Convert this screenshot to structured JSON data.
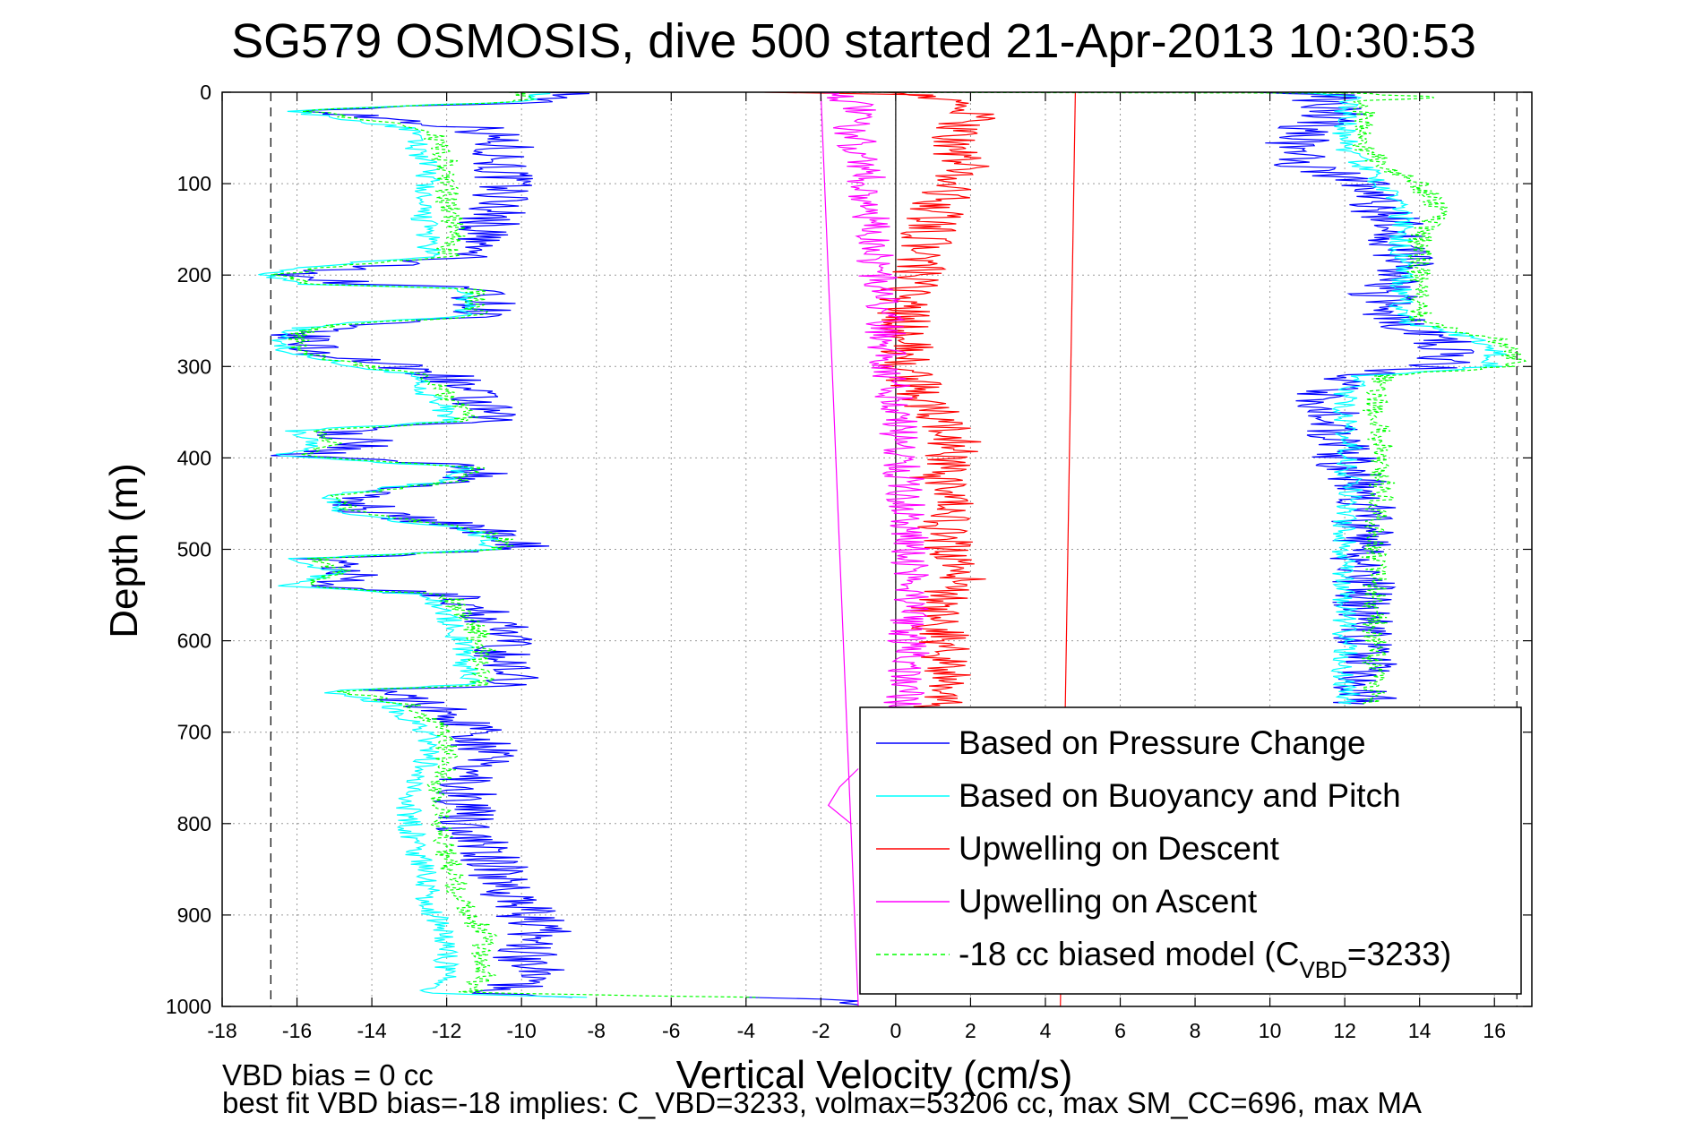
{
  "chart_data": {
    "type": "line",
    "title": "SG579 OSMOSIS, dive 500 started 21-Apr-2013 10:30:53",
    "xlabel": "Vertical Velocity (cm/s)",
    "ylabel": "Depth (m)",
    "xlim": [
      -18,
      17
    ],
    "ylim": [
      0,
      1000
    ],
    "y_reversed": true,
    "grid": true,
    "x_ticks": [
      "-18",
      "-16",
      "-14",
      "-12",
      "-10",
      "-8",
      "-6",
      "-4",
      "-2",
      "0",
      "2",
      "4",
      "6",
      "8",
      "10",
      "12",
      "14",
      "16"
    ],
    "y_ticks": [
      "0",
      "100",
      "200",
      "300",
      "400",
      "500",
      "600",
      "700",
      "800",
      "900",
      "1000"
    ],
    "legend_position": "bottom-right",
    "legend": [
      {
        "label": "Based on Pressure Change",
        "sub": "",
        "tail": "",
        "color": "#0000ff",
        "dash": "solid"
      },
      {
        "label": "Based on Buoyancy and Pitch",
        "sub": "",
        "tail": "",
        "color": "#00ffff",
        "dash": "solid"
      },
      {
        "label": "Upwelling on Descent",
        "sub": "",
        "tail": "",
        "color": "#ff0000",
        "dash": "solid"
      },
      {
        "label": "Upwelling on Ascent",
        "sub": "",
        "tail": "",
        "color": "#ff00ff",
        "dash": "solid"
      },
      {
        "label": "-18 cc biased model (C",
        "sub": "VBD",
        "tail": "=3233)",
        "color": "#00ff00",
        "dash": "dashed"
      }
    ],
    "annotations": {
      "line1": "VBD bias = 0 cc",
      "line2": "best fit VBD bias=-18 implies: C_VBD=3233, volmax=53206 cc, max SM_CC=696, max MA"
    },
    "reference_lines": [
      {
        "x": -16.7,
        "style": "dashed",
        "color": "#000000"
      },
      {
        "x": 16.6,
        "style": "dashed",
        "color": "#000000"
      },
      {
        "x": 0,
        "style": "solid",
        "color": "#000000"
      }
    ],
    "series": [
      {
        "name": "Based on Pressure Change",
        "color": "#0000ff",
        "segments": [
          {
            "depth": [
              0,
              10,
              20,
              40,
              60,
              80,
              100,
              120,
              150,
              180,
              190,
              200,
              205,
              210,
              215,
              230,
              245,
              255,
              265,
              285,
              295,
              310,
              330,
              350,
              360,
              370,
              385,
              398,
              410,
              425,
              440,
              460,
              478,
              490,
              500,
              510,
              525,
              540,
              550,
              570,
              590,
              610,
              630,
              648,
              655,
              670,
              700,
              730,
              760,
              800,
              830,
              860,
              890,
              920,
              950,
              965,
              980,
              985,
              990
            ],
            "x": [
              -8.5,
              -9.5,
              -15.5,
              -11,
              -10.5,
              -10.5,
              -10.5,
              -10.5,
              -11,
              -11.5,
              -14,
              -16,
              -15.5,
              -14,
              -11,
              -11,
              -11,
              -15,
              -16,
              -15.5,
              -14,
              -12,
              -11.5,
              -11,
              -11,
              -15,
              -14,
              -16,
              -11,
              -11.5,
              -14.5,
              -14,
              -11,
              -10,
              -10,
              -15.5,
              -14.5,
              -15.5,
              -12,
              -11,
              -10.5,
              -10.5,
              -10.5,
              -10,
              -14,
              -12.5,
              -11,
              -11,
              -11.5,
              -11.5,
              -11,
              -10.5,
              -10,
              -9.5,
              -10,
              -9,
              -10.5,
              -11,
              -8
            ]
          },
          {
            "depth": [
              990,
              992,
              994,
              996,
              998
            ],
            "x": [
              -4,
              -2,
              -1,
              -1.5,
              -1
            ]
          },
          {
            "depth": [
              0,
              5,
              10,
              20,
              40,
              60,
              80,
              100,
              130,
              160,
              190,
              220,
              250,
              270,
              285,
              300,
              310,
              330,
              360,
              390,
              410,
              440,
              470,
              500,
              530,
              560,
              590,
              620,
              650,
              670
            ],
            "x": [
              10.5,
              12,
              11,
              12,
              11,
              10.5,
              11,
              12.5,
              13,
              13.5,
              13.5,
              13,
              13.5,
              14.5,
              15,
              14.5,
              12,
              11.5,
              11.5,
              12,
              12,
              12.5,
              12.5,
              12.5,
              12.5,
              12.5,
              12.5,
              12.5,
              12.5,
              12.5
            ]
          }
        ]
      },
      {
        "name": "Based on Buoyancy and Pitch",
        "color": "#00ffff",
        "segments": [
          {
            "depth": [
              0,
              10,
              20,
              40,
              60,
              80,
              100,
              120,
              150,
              180,
              190,
              200,
              205,
              210,
              215,
              230,
              245,
              255,
              265,
              285,
              295,
              310,
              330,
              350,
              360,
              370,
              385,
              398,
              410,
              425,
              440,
              460,
              478,
              490,
              500,
              510,
              525,
              540,
              550,
              570,
              590,
              610,
              630,
              648,
              655,
              670,
              700,
              730,
              760,
              800,
              830,
              860,
              890,
              920,
              950,
              965,
              980,
              985,
              990
            ],
            "x": [
              -9.5,
              -10,
              -16.2,
              -13,
              -12.8,
              -12.5,
              -12.5,
              -12.8,
              -12.5,
              -12.5,
              -15.5,
              -17,
              -16.5,
              -16,
              -11.5,
              -11.5,
              -11.5,
              -15.5,
              -16.5,
              -16.2,
              -15,
              -12.8,
              -12.5,
              -12,
              -12,
              -16,
              -15.5,
              -16.5,
              -11.5,
              -12,
              -15,
              -15,
              -11.5,
              -10.8,
              -10.8,
              -16,
              -15,
              -16.2,
              -12.5,
              -12,
              -11.8,
              -11.5,
              -11.5,
              -11.2,
              -15.2,
              -13.5,
              -12.5,
              -12.5,
              -13,
              -13,
              -12.8,
              -12.5,
              -12.5,
              -12,
              -12,
              -12,
              -12.2,
              -12.5,
              -8.5
            ]
          },
          {
            "depth": [
              0,
              5,
              10,
              20,
              40,
              60,
              80,
              100,
              130,
              160,
              190,
              220,
              250,
              270,
              285,
              300,
              310,
              330,
              360,
              390,
              410,
              440,
              470,
              500,
              530,
              560,
              590,
              620,
              650,
              670
            ],
            "x": [
              11,
              12.5,
              12,
              12,
              12,
              12,
              12.5,
              13,
              13.5,
              13.5,
              13.5,
              13.5,
              13.5,
              15.5,
              16,
              16,
              12.5,
              12,
              12,
              12.2,
              12,
              12.2,
              12,
              12,
              12,
              12,
              12,
              12,
              12,
              12.2
            ]
          }
        ]
      },
      {
        "name": "Upwelling on Descent",
        "color": "#ff0000",
        "segments": [
          {
            "depth": [
              0,
              20,
              40,
              60,
              80,
              100,
              120,
              140,
              160,
              180,
              200,
              220,
              240,
              260,
              280,
              300,
              320,
              340,
              360,
              380,
              400,
              420,
              440,
              460,
              480,
              500,
              520,
              540,
              560,
              580,
              600,
              620,
              640,
              660,
              680
            ],
            "x": [
              0.5,
              2,
              1.8,
              1.5,
              1.8,
              1.5,
              1.2,
              1,
              0.8,
              0.7,
              0.5,
              0.3,
              0.2,
              0.2,
              0.3,
              0.2,
              0.5,
              0.8,
              1.2,
              1.6,
              1.5,
              1,
              1.3,
              1.5,
              1.2,
              1.4,
              1.8,
              1.6,
              1,
              1,
              1.3,
              1.4,
              1.3,
              1.1,
              1
            ]
          },
          {
            "depth": [
              0,
              1000
            ],
            "x": [
              4.8,
              4.4
            ]
          },
          {
            "depth": [
              0,
              3
            ],
            "x": [
              -3.5,
              1
            ]
          }
        ]
      },
      {
        "name": "Upwelling on Ascent",
        "color": "#ff00ff",
        "segments": [
          {
            "depth": [
              0,
              20,
              40,
              60,
              80,
              100,
              120,
              140,
              160,
              180,
              200,
              220,
              240,
              260,
              280,
              300,
              320,
              340,
              360,
              380,
              400,
              420,
              440,
              460,
              480,
              500,
              520,
              540,
              560,
              580,
              600,
              620,
              640,
              660,
              680
            ],
            "x": [
              -1.5,
              -1,
              -1.2,
              -1,
              -0.8,
              -0.8,
              -0.8,
              -0.7,
              -0.6,
              -0.5,
              -0.5,
              -0.4,
              -0.3,
              -0.3,
              -0.2,
              -0.2,
              -0.1,
              0,
              0.1,
              0.1,
              0.2,
              0.2,
              0.3,
              0.3,
              0.3,
              0.4,
              0.4,
              0.5,
              0.4,
              0.3,
              0.3,
              0.4,
              0.3,
              0.2,
              0.2
            ]
          },
          {
            "depth": [
              740,
              760,
              780,
              800
            ],
            "x": [
              -1,
              -1.5,
              -1.8,
              -1.2
            ]
          },
          {
            "depth": [
              0,
              1000
            ],
            "x": [
              -2,
              -1
            ]
          }
        ]
      },
      {
        "name": "-18 cc biased model (CVBD=3233)",
        "color": "#00ff00",
        "dash": "dashed",
        "segments": [
          {
            "depth": [
              0,
              10,
              20,
              40,
              60,
              80,
              100,
              120,
              150,
              180,
              190,
              200,
              205,
              210,
              215,
              230,
              245,
              255,
              265,
              285,
              295,
              310,
              330,
              350,
              360,
              370,
              385,
              398,
              410,
              425,
              440,
              460,
              478,
              490,
              500,
              510,
              525,
              540,
              550,
              570,
              590,
              610,
              630,
              648,
              655,
              670,
              700,
              730,
              760,
              800,
              830,
              860,
              890,
              920,
              950,
              965,
              980,
              985,
              990
            ],
            "x": [
              -10,
              -10,
              -15.8,
              -12.5,
              -12.2,
              -12,
              -12,
              -12,
              -11.8,
              -12,
              -15,
              -16.5,
              -16,
              -15.5,
              -11.2,
              -11.2,
              -11.2,
              -15.2,
              -16,
              -15.8,
              -14.8,
              -12.5,
              -12,
              -11.5,
              -11.5,
              -15.5,
              -15,
              -16,
              -11.2,
              -11.5,
              -14.8,
              -14.5,
              -11.2,
              -10.5,
              -10.5,
              -15.5,
              -14.8,
              -15.8,
              -12,
              -11.5,
              -11.2,
              -11,
              -11.2,
              -11,
              -14.8,
              -13,
              -12,
              -12,
              -12.2,
              -12.2,
              -12,
              -11.8,
              -11.5,
              -11,
              -11,
              -11,
              -11.2,
              -11.5,
              -4
            ]
          },
          {
            "depth": [
              0,
              5,
              10,
              20,
              40,
              60,
              80,
              100,
              130,
              160,
              190,
              220,
              250,
              270,
              285,
              300,
              310,
              330,
              360,
              390,
              410,
              440,
              470,
              500,
              530,
              560,
              590,
              620,
              650,
              670
            ],
            "x": [
              11.5,
              14.5,
              12.5,
              12.5,
              12.5,
              12.5,
              13,
              14,
              14.5,
              14,
              14,
              14,
              14,
              16,
              16.5,
              16.5,
              13,
              12.8,
              12.8,
              13,
              13,
              13,
              12.8,
              12.8,
              12.8,
              12.8,
              12.8,
              12.8,
              12.8,
              12.8
            ]
          },
          {
            "depth": [
              0,
              1
            ],
            "x": [
              -3,
              12
            ]
          }
        ]
      }
    ]
  }
}
